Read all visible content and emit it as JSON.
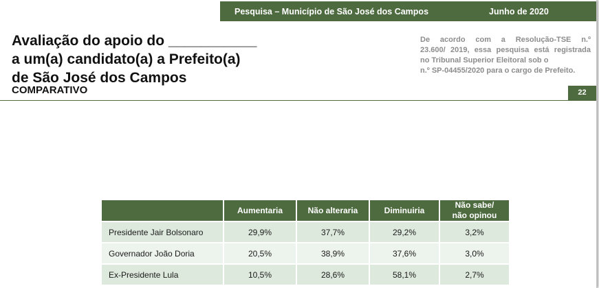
{
  "header": {
    "survey": "Pesquisa – Município de São José dos Campos",
    "date": "Junho de 2020"
  },
  "title": {
    "line1": "Avaliação do apoio do ___________",
    "line2": "a um(a) candidato(a) a Prefeito(a)",
    "line3": "de São José dos Campos"
  },
  "subtitle": "COMPARATIVO",
  "notice": {
    "line1": "De acordo com a Resolução-TSE n.º",
    "line2": "23.600/ 2019, essa pesquisa está registrada",
    "line3": "no Tribunal Superior Eleitoral sob o",
    "line4": "n.º SP-04455/2020 para o cargo de Prefeito."
  },
  "page_number": "22",
  "table": {
    "headers": [
      "",
      "Aumentaria",
      "Não alteraria",
      "Diminuiria",
      "Não sabe/",
      "não opinou"
    ],
    "rows": [
      {
        "name": "Presidente Jair Bolsonaro",
        "values": [
          "29,9%",
          "37,7%",
          "29,2%",
          "3,2%"
        ]
      },
      {
        "name": "Governador João Doria",
        "values": [
          "20,5%",
          "38,9%",
          "37,6%",
          "3,0%"
        ]
      },
      {
        "name": "Ex-Presidente Lula",
        "values": [
          "10,5%",
          "28,6%",
          "58,1%",
          "2,7%"
        ]
      }
    ]
  },
  "colors": {
    "brand_green": "#4d6b3f",
    "row_light_green": "#dde9dd",
    "row_pale_green": "#edf3ed"
  }
}
